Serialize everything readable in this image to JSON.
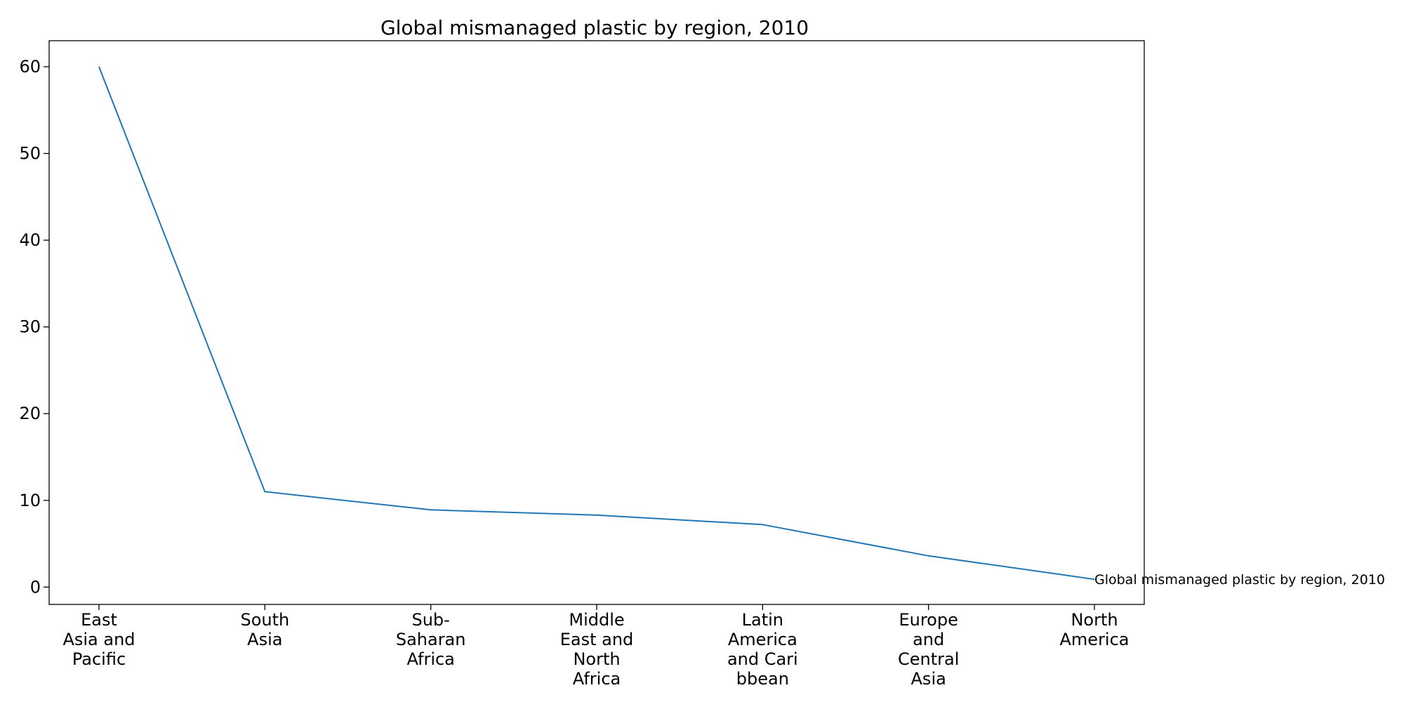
{
  "chart_data": {
    "type": "line",
    "title": "Global mismanaged plastic by region, 2010",
    "xlabel": "",
    "ylabel": "",
    "categories": [
      [
        "East",
        "Asia and",
        "Pacific"
      ],
      [
        "South",
        "Asia"
      ],
      [
        "Sub-",
        "Saharan",
        "Africa"
      ],
      [
        "Middle",
        "East and",
        "North",
        "Africa"
      ],
      [
        "Latin",
        "America",
        "and Cari",
        "bbean"
      ],
      [
        "Europe",
        "and",
        "Central",
        "Asia"
      ],
      [
        "North",
        "America"
      ]
    ],
    "series": [
      {
        "name": "Global mismanaged plastic by region, 2010",
        "color": "#1f77b4",
        "values": [
          60.0,
          11.0,
          8.9,
          8.3,
          7.2,
          3.6,
          0.9
        ]
      }
    ],
    "ylim": [
      -2.0,
      63.0
    ],
    "yticks": [
      0,
      10,
      20,
      30,
      40,
      50,
      60
    ],
    "grid": false,
    "annotation": "Global mismanaged plastic by region, 2010"
  }
}
